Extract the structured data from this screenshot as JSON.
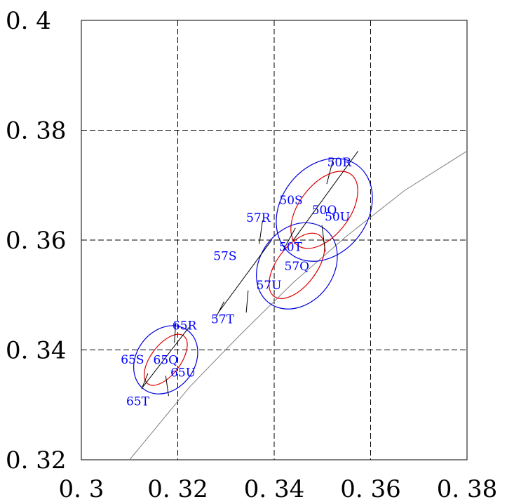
{
  "chart_data": {
    "type": "scatter",
    "title": "",
    "xlabel": "",
    "ylabel": "",
    "xlim": [
      0.3,
      0.38
    ],
    "ylim": [
      0.32,
      0.4
    ],
    "grid": true,
    "x_ticks": [
      0.3,
      0.32,
      0.34,
      0.36,
      0.38
    ],
    "y_ticks": [
      0.32,
      0.34,
      0.36,
      0.38,
      0.4
    ],
    "x_tick_labels": [
      "0. 3",
      "0. 32",
      "0. 34",
      "0. 36",
      "0. 38"
    ],
    "y_tick_labels": [
      "0. 32",
      "0. 34",
      "0. 36",
      "0. 38",
      "0. 4"
    ],
    "colors": {
      "outer": "#0000dd",
      "inner": "#dd0000",
      "locus": "#808080",
      "labels": "#0000ff"
    },
    "locus": [
      [
        0.31,
        0.32
      ],
      [
        0.3225,
        0.3333
      ],
      [
        0.333,
        0.3428
      ],
      [
        0.344,
        0.3523
      ],
      [
        0.355,
        0.3607
      ],
      [
        0.367,
        0.369
      ],
      [
        0.38,
        0.3762
      ]
    ],
    "regions": [
      {
        "center": [
          0.3447,
          0.3553
        ],
        "center_label": "57Q",
        "outer_ellipse": {
          "a": 0.0096,
          "b": 0.0067,
          "angle_deg": 53
        },
        "inner_ellipse": {
          "a": 0.0079,
          "b": 0.0036,
          "angle_deg": 53
        },
        "tick_lines": [
          [
            [
              0.3285,
              0.3469
            ],
            [
              0.3394,
              0.3599
            ]
          ],
          [
            [
              0.3346,
              0.3508
            ],
            [
              0.3342,
              0.3468
            ]
          ],
          [
            [
              0.3369,
              0.3593
            ],
            [
              0.3376,
              0.3636
            ]
          ],
          [
            [
              0.3296,
              0.3488
            ],
            [
              0.3279,
              0.3459
            ]
          ]
        ],
        "labels": [
          {
            "text": "57R",
            "x": 0.3367,
            "y": 0.3641
          },
          {
            "text": "57S",
            "x": 0.3298,
            "y": 0.3571
          },
          {
            "text": "57T",
            "x": 0.3293,
            "y": 0.3456
          },
          {
            "text": "57U",
            "x": 0.3389,
            "y": 0.3518
          }
        ]
      },
      {
        "center": [
          0.3504,
          0.3655
        ],
        "center_label": "50Q",
        "outer_ellipse": {
          "a": 0.0115,
          "b": 0.0079,
          "angle_deg": 53
        },
        "inner_ellipse": {
          "a": 0.0092,
          "b": 0.0046,
          "angle_deg": 53
        },
        "tick_lines": [
          [
            [
              0.3439,
              0.3599
            ],
            [
              0.3574,
              0.3762
            ]
          ],
          [
            [
              0.3499,
              0.3627
            ],
            [
              0.3506,
              0.3579
            ]
          ],
          [
            [
              0.3509,
              0.3702
            ],
            [
              0.3523,
              0.3749
            ]
          ],
          [
            [
              0.3444,
              0.3622
            ],
            [
              0.3419,
              0.3582
            ]
          ]
        ],
        "labels": [
          {
            "text": "50R",
            "x": 0.3535,
            "y": 0.3742
          },
          {
            "text": "50S",
            "x": 0.3435,
            "y": 0.3673
          },
          {
            "text": "50T",
            "x": 0.3434,
            "y": 0.3588
          },
          {
            "text": "50U",
            "x": 0.3531,
            "y": 0.3643
          }
        ]
      },
      {
        "center": [
          0.3175,
          0.3382
        ],
        "center_label": "65Q",
        "outer_ellipse": {
          "a": 0.0076,
          "b": 0.0053,
          "angle_deg": 53
        },
        "inner_ellipse": {
          "a": 0.0062,
          "b": 0.0027,
          "angle_deg": 53
        },
        "tick_lines": [
          [
            [
              0.3128,
              0.3333
            ],
            [
              0.3223,
              0.3441
            ]
          ],
          [
            [
              0.3175,
              0.3353
            ],
            [
              0.3181,
              0.3316
            ]
          ],
          [
            [
              0.3193,
              0.3413
            ],
            [
              0.3196,
              0.345
            ]
          ],
          [
            [
              0.3138,
              0.3357
            ],
            [
              0.3125,
              0.3329
            ]
          ]
        ],
        "labels": [
          {
            "text": "65R",
            "x": 0.3214,
            "y": 0.3445
          },
          {
            "text": "65S",
            "x": 0.3106,
            "y": 0.3383
          },
          {
            "text": "65T",
            "x": 0.3117,
            "y": 0.3307
          },
          {
            "text": "65U",
            "x": 0.3211,
            "y": 0.3359
          }
        ]
      }
    ]
  }
}
